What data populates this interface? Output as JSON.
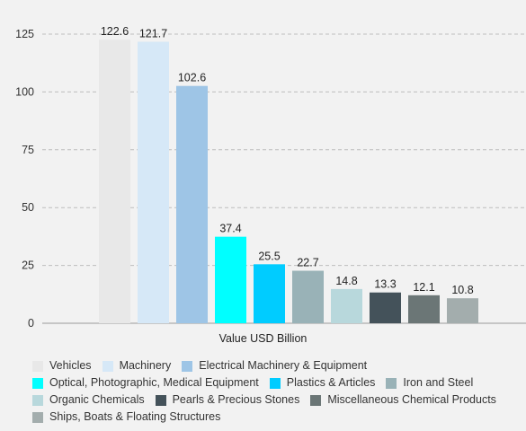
{
  "chart_data": {
    "type": "bar",
    "xlabel": "Value USD Billion",
    "ylabel": "",
    "ylim": [
      0,
      130
    ],
    "yticks": [
      0,
      25,
      50,
      75,
      100,
      125
    ],
    "grid": true,
    "legend_position": "bottom",
    "series": [
      {
        "name": "Vehicles",
        "value": 122.6,
        "color": "#e8e8e8"
      },
      {
        "name": "Machinery",
        "value": 121.7,
        "color": "#d6e8f7"
      },
      {
        "name": "Electrical Machinery & Equipment",
        "value": 102.6,
        "color": "#9ec5e6"
      },
      {
        "name": "Optical, Photographic, Medical Equipment",
        "value": 37.4,
        "color": "#00ffff"
      },
      {
        "name": "Plastics & Articles",
        "value": 25.5,
        "color": "#00ccff"
      },
      {
        "name": "Iron and Steel",
        "value": 22.7,
        "color": "#99b2b7"
      },
      {
        "name": "Organic Chemicals",
        "value": 14.8,
        "color": "#b8d8dc"
      },
      {
        "name": "Pearls & Precious Stones",
        "value": 13.3,
        "color": "#44525a"
      },
      {
        "name": "Miscellaneous Chemical Products",
        "value": 12.1,
        "color": "#6b7676"
      },
      {
        "name": "Ships, Boats & Floating Structures",
        "value": 10.8,
        "color": "#a3adad"
      }
    ]
  }
}
